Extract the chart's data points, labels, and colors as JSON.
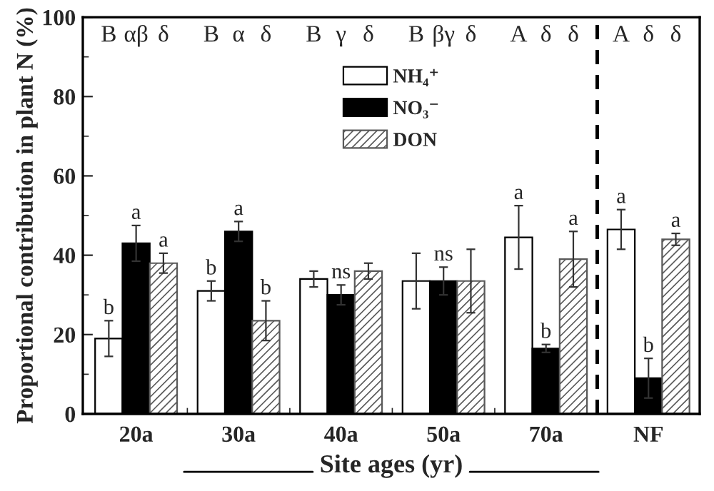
{
  "chart_data": {
    "type": "bar",
    "ylabel": "Proportional contribution in plant N (%)",
    "xlabel": "Site ages (yr)",
    "categories": [
      "20a",
      "30a",
      "40a",
      "50a",
      "70a",
      "NF"
    ],
    "series": [
      {
        "name": "NH₄⁺",
        "color": "#ffffff",
        "values": [
          19,
          31,
          34,
          33.5,
          44.5,
          46.5
        ],
        "errors": [
          4.5,
          2.5,
          2,
          7,
          8,
          5
        ],
        "value_labels": [
          "b",
          "b",
          null,
          null,
          "a",
          "a"
        ]
      },
      {
        "name": "NO₃⁻",
        "color": "#000000",
        "values": [
          43,
          46,
          30,
          33.5,
          16.5,
          9
        ],
        "errors": [
          4.5,
          2.5,
          2.5,
          3.5,
          1,
          5
        ],
        "value_labels": [
          "a",
          "a",
          "ns",
          "ns",
          "b",
          "b"
        ]
      },
      {
        "name": "DON",
        "color": "#595959",
        "values": [
          38,
          23.5,
          36,
          33.5,
          39,
          44
        ],
        "errors": [
          2.5,
          5,
          2,
          8,
          7,
          1.5
        ],
        "value_labels": [
          "a",
          "b",
          null,
          null,
          "a",
          "a"
        ]
      }
    ],
    "ylim": [
      0,
      100
    ],
    "yticks": [
      0,
      20,
      40,
      60,
      80,
      100
    ],
    "legend": "top",
    "grid": false,
    "annotations": [
      "B",
      "αβ",
      "δ",
      "B",
      "α",
      "δ",
      "B",
      "γ",
      "δ",
      "B",
      "βγ",
      "δ",
      "A",
      "δ",
      "δ",
      "A",
      "δ",
      "δ"
    ]
  }
}
